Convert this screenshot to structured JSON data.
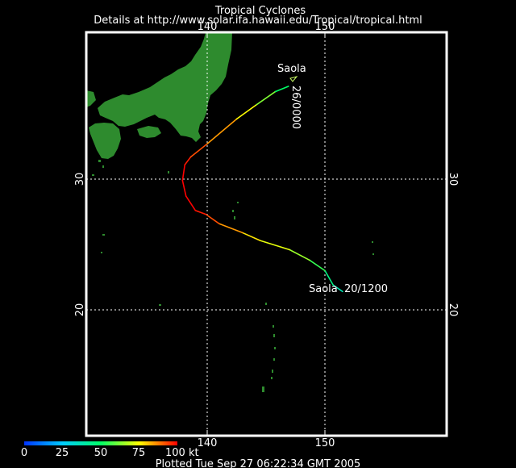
{
  "header": {
    "title": "Tropical Cyclones",
    "details": "Details at http://www.solar.ifa.hawaii.edu/Tropical/tropical.html"
  },
  "map": {
    "lon_ticks": [
      {
        "value": 140,
        "label": "140"
      },
      {
        "value": 150,
        "label": "150"
      }
    ],
    "lat_ticks": [
      {
        "value": 30,
        "label": "30"
      },
      {
        "value": 20,
        "label": "20"
      }
    ],
    "land_color": "#2e8b2e"
  },
  "storm": {
    "name_start": "Saola",
    "label_start": "Saola  20/1200",
    "name_end": "Saola",
    "label_end": "26/0000",
    "track": [
      {
        "lon": 151.5,
        "lat": 21.4,
        "kt": 35
      },
      {
        "lon": 150.7,
        "lat": 21.9,
        "kt": 40
      },
      {
        "lon": 150.0,
        "lat": 23.0,
        "kt": 50
      },
      {
        "lon": 148.7,
        "lat": 23.8,
        "kt": 60
      },
      {
        "lon": 147.0,
        "lat": 24.6,
        "kt": 70
      },
      {
        "lon": 144.5,
        "lat": 25.3,
        "kt": 75
      },
      {
        "lon": 143.0,
        "lat": 25.9,
        "kt": 80
      },
      {
        "lon": 141.0,
        "lat": 26.6,
        "kt": 90
      },
      {
        "lon": 139.9,
        "lat": 27.3,
        "kt": 95
      },
      {
        "lon": 139.0,
        "lat": 27.6,
        "kt": 100
      },
      {
        "lon": 138.2,
        "lat": 28.7,
        "kt": 100
      },
      {
        "lon": 137.9,
        "lat": 29.9,
        "kt": 100
      },
      {
        "lon": 138.1,
        "lat": 31.1,
        "kt": 100
      },
      {
        "lon": 138.6,
        "lat": 31.7,
        "kt": 95
      },
      {
        "lon": 140.0,
        "lat": 32.7,
        "kt": 90
      },
      {
        "lon": 142.5,
        "lat": 34.6,
        "kt": 80
      },
      {
        "lon": 144.2,
        "lat": 35.7,
        "kt": 70
      },
      {
        "lon": 145.8,
        "lat": 36.7,
        "kt": 55
      },
      {
        "lon": 146.9,
        "lat": 37.1,
        "kt": 45
      }
    ]
  },
  "legend": {
    "labels": [
      "0",
      "25",
      "50",
      "75",
      "100 kt"
    ],
    "colors": [
      "#0033ff",
      "#00ccff",
      "#00ff66",
      "#ffff00",
      "#ff0000"
    ]
  },
  "footer": {
    "plotted": "Plotted Tue Sep 27 06:22:34 GMT 2005"
  }
}
